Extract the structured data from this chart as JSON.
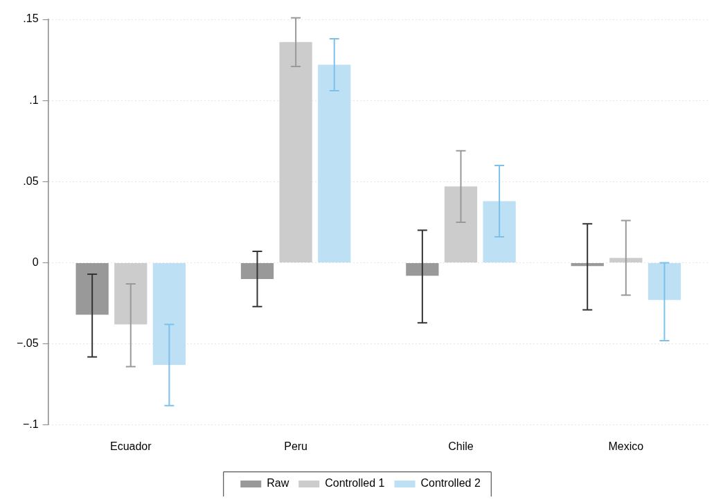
{
  "chart_data": {
    "type": "bar",
    "categories": [
      "Ecuador",
      "Peru",
      "Chile",
      "Mexico"
    ],
    "series": [
      {
        "name": "Raw",
        "color": "#999999",
        "values": [
          -0.032,
          -0.01,
          -0.008,
          -0.002
        ],
        "errors": [
          [
            -0.058,
            -0.007
          ],
          [
            -0.027,
            0.007
          ],
          [
            -0.037,
            0.02
          ],
          [
            -0.029,
            0.024
          ]
        ]
      },
      {
        "name": "Controlled 1",
        "color": "#cccccc",
        "values": [
          -0.038,
          0.136,
          0.047,
          0.003
        ],
        "errors": [
          [
            -0.064,
            -0.013
          ],
          [
            0.121,
            0.151
          ],
          [
            0.025,
            0.069
          ],
          [
            -0.02,
            0.026
          ]
        ]
      },
      {
        "name": "Controlled 2",
        "color": "#bde0f5",
        "values": [
          -0.063,
          0.122,
          0.038,
          -0.023
        ],
        "errors": [
          [
            -0.088,
            -0.038
          ],
          [
            0.106,
            0.138
          ],
          [
            0.016,
            0.06
          ],
          [
            -0.048,
            0
          ]
        ]
      }
    ],
    "ylim": [
      -0.1,
      0.15
    ],
    "yticks": [
      {
        "value": -0.1,
        "label": "−.1"
      },
      {
        "value": -0.05,
        "label": "−.05"
      },
      {
        "value": 0,
        "label": "0"
      },
      {
        "value": 0.05,
        "label": ".05"
      },
      {
        "value": 0.1,
        "label": ".1"
      },
      {
        "value": 0.15,
        "label": ".15"
      }
    ],
    "grid": "y",
    "legend": "bottom"
  }
}
